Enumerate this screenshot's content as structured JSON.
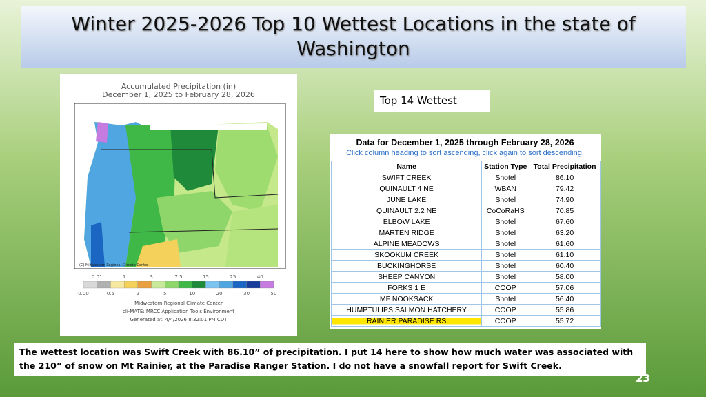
{
  "header": {
    "title": "Winter 2025-2026  Top 10 Wettest Locations in the state of Washington"
  },
  "map": {
    "title_lines": [
      "Accumulated Precipitation (in)",
      "December 1, 2025 to February 28, 2026"
    ],
    "credit": "(C) Midwestern Regional Climate Center",
    "legend_top": [
      "0.01",
      "1",
      "3",
      "7.5",
      "15",
      "25",
      "40"
    ],
    "legend_bottom": [
      "0.00",
      "0.5",
      "2",
      "5",
      "10",
      "20",
      "30",
      "50"
    ],
    "footer": [
      "Midwestern Regional Climate Center",
      "cli-MATE: MRCC Application Tools Environment",
      "Generated at: 4/4/2026 8:32:01 PM CDT"
    ]
  },
  "label": "Top 14 Wettest",
  "table": {
    "title": "Data for December 1, 2025 through February 28, 2026",
    "subtitle": "Click column heading to sort ascending, click again to sort descending.",
    "columns": [
      "Name",
      "Station Type",
      "Total Precipitation"
    ],
    "rows": [
      [
        "SWIFT CREEK",
        "Snotel",
        "86.10"
      ],
      [
        "QUINAULT 4 NE",
        "WBAN",
        "79.42"
      ],
      [
        "JUNE LAKE",
        "Snotel",
        "74.90"
      ],
      [
        "QUINAULT 2.2 NE",
        "CoCoRaHS",
        "70.85"
      ],
      [
        "ELBOW LAKE",
        "Snotel",
        "67.60"
      ],
      [
        "MARTEN RIDGE",
        "Snotel",
        "63.20"
      ],
      [
        "ALPINE MEADOWS",
        "Snotel",
        "61.60"
      ],
      [
        "SKOOKUM CREEK",
        "Snotel",
        "61.10"
      ],
      [
        "BUCKINGHORSE",
        "Snotel",
        "60.40"
      ],
      [
        "SHEEP CANYON",
        "Snotel",
        "58.00"
      ],
      [
        "FORKS 1 E",
        "COOP",
        "57.06"
      ],
      [
        "MF NOOKSACK",
        "Snotel",
        "56.40"
      ],
      [
        "HUMPTULIPS SALMON HATCHERY",
        "COOP",
        "55.86"
      ],
      [
        "RAINIER PARADISE RS",
        "COOP",
        "55.72"
      ]
    ]
  },
  "caption": "The wettest location was Swift Creek with 86.10” of precipitation. I put 14 here to show how much water was associated with the 210” of snow on Mt Rainier, at the Paradise   Ranger Station. I do not have a snowfall report for Swift Creek.",
  "page_number": "23"
}
